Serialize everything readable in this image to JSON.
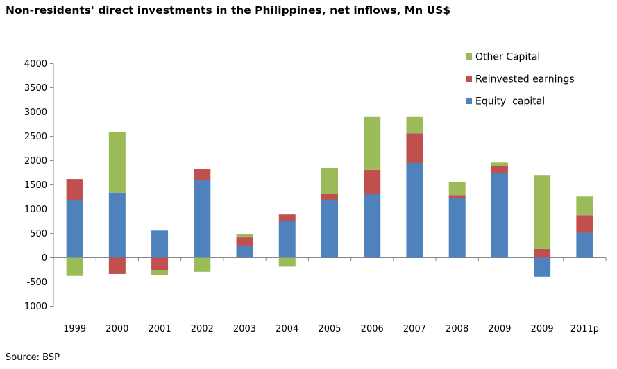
{
  "chart_data": {
    "type": "bar",
    "stacked": true,
    "title": "Non-residents' direct investments in the Philippines, net inflows, Mn US$",
    "source": "Source: BSP",
    "xlabel": "",
    "ylabel": "",
    "ylim": [
      -1000,
      4000
    ],
    "yticks": [
      -1000,
      -500,
      0,
      500,
      1000,
      1500,
      2000,
      2500,
      3000,
      3500,
      4000
    ],
    "grid": false,
    "legend_position": "top-right",
    "categories": [
      "1999",
      "2000",
      "2001",
      "2002",
      "2003",
      "2004",
      "2005",
      "2006",
      "2007",
      "2008",
      "2009",
      "2009",
      "2011p"
    ],
    "series": [
      {
        "name": "Equity  capital",
        "color": "#4f81bd",
        "values": [
          1180,
          1340,
          560,
          1600,
          250,
          750,
          1180,
          1320,
          1950,
          1230,
          1740,
          -390,
          515
        ]
      },
      {
        "name": "Reinvested earnings",
        "color": "#c0504d",
        "values": [
          440,
          -335,
          -250,
          230,
          170,
          140,
          140,
          490,
          610,
          60,
          150,
          180,
          360
        ]
      },
      {
        "name": "Other Capital",
        "color": "#9bbb59",
        "values": [
          -375,
          1240,
          -110,
          -290,
          70,
          -185,
          530,
          1100,
          350,
          260,
          70,
          1510,
          385
        ]
      }
    ]
  }
}
